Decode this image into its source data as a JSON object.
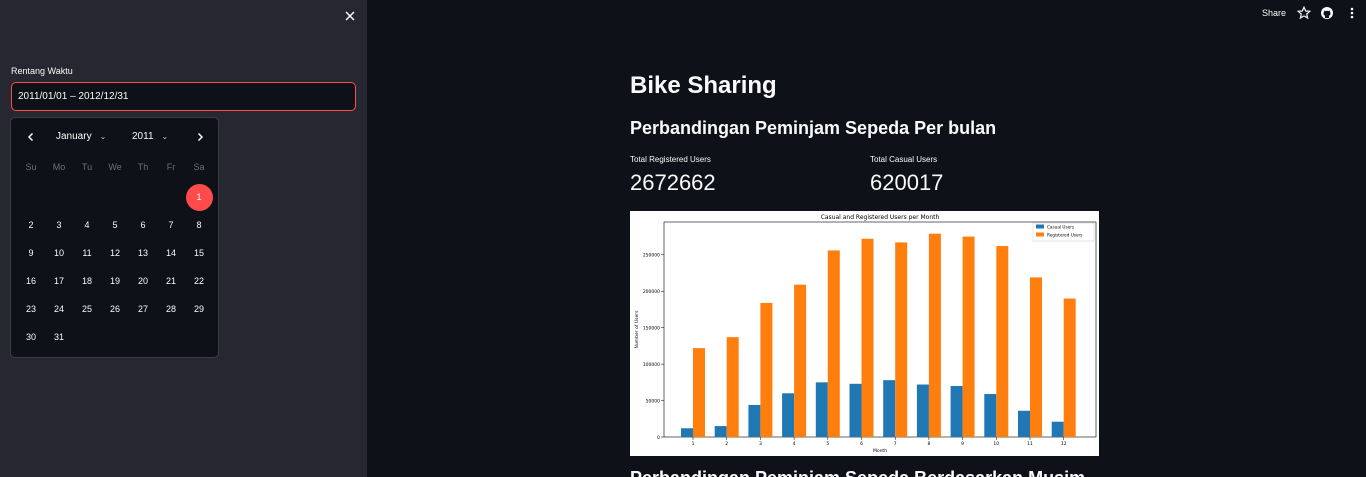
{
  "sidebar": {
    "date_label": "Rentang Waktu",
    "date_value": "2011/01/01 – 2012/12/31",
    "calendar": {
      "month": "January",
      "year": "2011",
      "weekdays": [
        "Su",
        "Mo",
        "Tu",
        "We",
        "Th",
        "Fr",
        "Sa"
      ],
      "selected_day": "1",
      "days": [
        "1",
        "2",
        "3",
        "4",
        "5",
        "6",
        "7",
        "8",
        "9",
        "10",
        "11",
        "12",
        "13",
        "14",
        "15",
        "16",
        "17",
        "18",
        "19",
        "20",
        "21",
        "22",
        "23",
        "24",
        "25",
        "26",
        "27",
        "28",
        "29",
        "30",
        "31"
      ]
    }
  },
  "header": {
    "share_label": "Share"
  },
  "main": {
    "title": "Bike Sharing",
    "subtitle": "Perbandingan Peminjam Sepeda Per bulan",
    "metrics": [
      {
        "label": "Total Registered Users",
        "value": "2672662"
      },
      {
        "label": "Total Casual Users",
        "value": "620017"
      }
    ],
    "next_heading": "Perbandingan Peminjam Sepeda Berdasarkan Musim"
  },
  "colors": {
    "accent": "#ff4b4b",
    "casual": "#1f77b4",
    "registered": "#ff7f0e"
  },
  "chart_data": {
    "type": "bar",
    "title": "Casual and Registered Users per Month",
    "xlabel": "Month",
    "ylabel": "Number of Users",
    "categories": [
      "1",
      "2",
      "3",
      "4",
      "5",
      "6",
      "7",
      "8",
      "9",
      "10",
      "11",
      "12"
    ],
    "ylim": [
      0,
      295000
    ],
    "yticks": [
      0,
      50000,
      100000,
      150000,
      200000,
      250000
    ],
    "legend_position": "top-right",
    "series": [
      {
        "name": "Casual Users",
        "values": [
          12000,
          15000,
          44000,
          60000,
          75000,
          73000,
          78000,
          72000,
          70000,
          59000,
          36000,
          21000
        ]
      },
      {
        "name": "Registered Users",
        "values": [
          122000,
          137000,
          184000,
          209000,
          256000,
          272000,
          267000,
          279000,
          275000,
          262000,
          219000,
          190000
        ]
      }
    ]
  }
}
